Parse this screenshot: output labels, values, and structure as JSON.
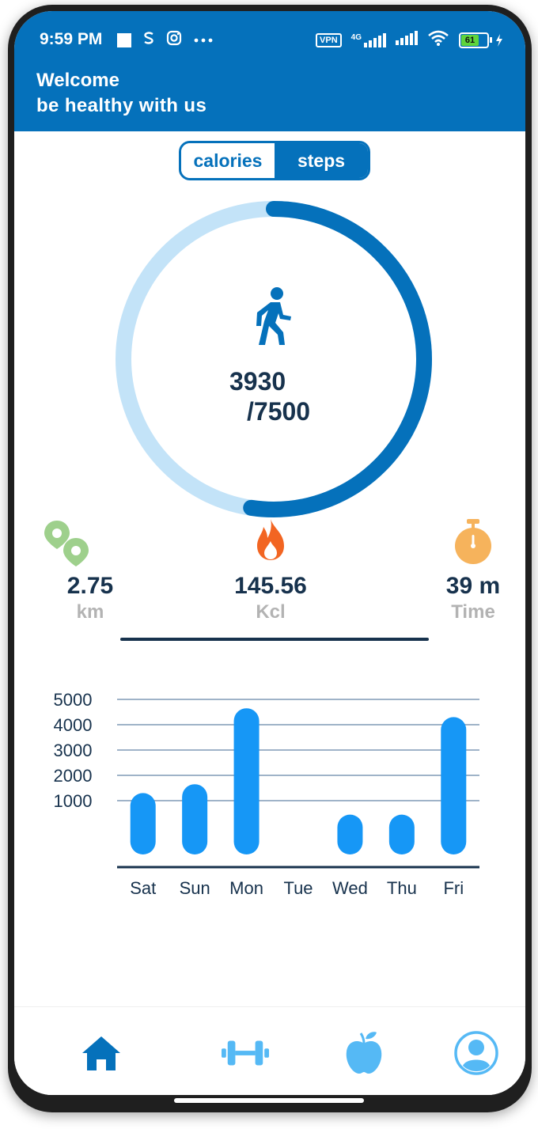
{
  "status_bar": {
    "time": "9:59 PM",
    "left_icons": [
      "square-icon",
      "s-icon",
      "instagram-icon",
      "more-dots-icon"
    ],
    "vpn_label": "VPN",
    "network_label": "4G",
    "battery_level": "61"
  },
  "header": {
    "line1": "Welcome",
    "line2": "be healthy with us"
  },
  "toggle": {
    "calories_label": "calories",
    "steps_label": "steps",
    "selected": "steps"
  },
  "progress": {
    "steps": "3930",
    "goal_text": "/7500",
    "fraction": 0.524,
    "icon": "walking-person-icon",
    "track_color": "#c3e3f8",
    "progress_color": "#0571bb"
  },
  "stats": [
    {
      "value": "2.75",
      "unit": "km",
      "icon": "location-pins-icon",
      "color": "#9ed08c"
    },
    {
      "value": "145.56",
      "unit": "Kcl",
      "icon": "flame-icon",
      "color": "#f26522"
    },
    {
      "value": "39 m",
      "unit": "Time",
      "icon": "stopwatch-icon",
      "color": "#f6b35c"
    }
  ],
  "chart_data": {
    "type": "bar",
    "categories": [
      "Sat",
      "Sun",
      "Mon",
      "Tue",
      "Wed",
      "Thu",
      "Fri"
    ],
    "values": [
      1300,
      1650,
      4650,
      0,
      450,
      450,
      4300
    ],
    "yticks": [
      "1000",
      "2000",
      "3000",
      "4000",
      "5000"
    ],
    "ylim": [
      0,
      5000
    ],
    "grid": true,
    "bar_color": "#1697f6"
  },
  "navbar": {
    "items": [
      {
        "name": "home",
        "icon": "home-icon",
        "active": true
      },
      {
        "name": "workout",
        "icon": "dumbbell-icon",
        "active": false
      },
      {
        "name": "nutrition",
        "icon": "apple-icon",
        "active": false
      },
      {
        "name": "profile",
        "icon": "profile-icon",
        "active": false
      }
    ]
  }
}
